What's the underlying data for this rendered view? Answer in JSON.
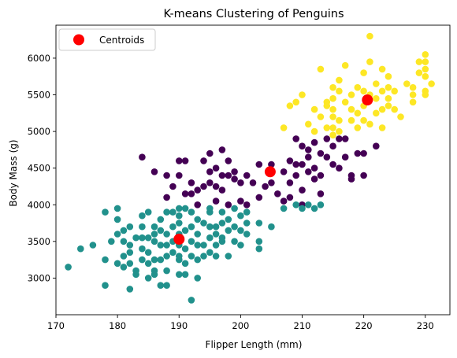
{
  "chart_data": {
    "type": "scatter",
    "title": "K-means Clustering of Penguins",
    "xlabel": "Flipper Length (mm)",
    "ylabel": "Body Mass (g)",
    "xlim": [
      170,
      234
    ],
    "ylim": [
      2500,
      6450
    ],
    "xticks": [
      170,
      180,
      190,
      200,
      210,
      220,
      230
    ],
    "yticks": [
      3000,
      3500,
      4000,
      4500,
      5000,
      5500,
      6000
    ],
    "grid": false,
    "legend": {
      "position": "top-left",
      "entries": [
        "Centroids"
      ]
    },
    "cluster_colors": [
      "#440154",
      "#21918c",
      "#fde725"
    ],
    "centroid_color": "#ff0000",
    "series": [
      {
        "cluster": 0,
        "points": [
          [
            184,
            4650
          ],
          [
            186,
            4450
          ],
          [
            188,
            4400
          ],
          [
            188,
            4100
          ],
          [
            189,
            4250
          ],
          [
            190,
            4600
          ],
          [
            190,
            4400
          ],
          [
            191,
            4600
          ],
          [
            191,
            4150
          ],
          [
            192,
            4150
          ],
          [
            192,
            4300
          ],
          [
            193,
            4200
          ],
          [
            193,
            4000
          ],
          [
            194,
            4250
          ],
          [
            194,
            4600
          ],
          [
            195,
            4450
          ],
          [
            195,
            4300
          ],
          [
            195,
            4700
          ],
          [
            196,
            4500
          ],
          [
            196,
            4250
          ],
          [
            196,
            4050
          ],
          [
            197,
            4400
          ],
          [
            197,
            4750
          ],
          [
            197,
            4200
          ],
          [
            198,
            4400
          ],
          [
            198,
            4600
          ],
          [
            198,
            4000
          ],
          [
            199,
            4450
          ],
          [
            199,
            4350
          ],
          [
            200,
            4300
          ],
          [
            200,
            4050
          ],
          [
            201,
            4400
          ],
          [
            201,
            4000
          ],
          [
            202,
            4300
          ],
          [
            203,
            4100
          ],
          [
            203,
            4550
          ],
          [
            204,
            4250
          ],
          [
            205,
            4550
          ],
          [
            205,
            4300
          ],
          [
            206,
            4150
          ],
          [
            207,
            4450
          ],
          [
            207,
            4050
          ],
          [
            208,
            4600
          ],
          [
            208,
            4300
          ],
          [
            208,
            4100
          ],
          [
            209,
            4550
          ],
          [
            209,
            4900
          ],
          [
            209,
            4400
          ],
          [
            210,
            4800
          ],
          [
            210,
            4550
          ],
          [
            210,
            4200
          ],
          [
            210,
            4000
          ],
          [
            211,
            4750
          ],
          [
            211,
            4450
          ],
          [
            211,
            4650
          ],
          [
            212,
            4850
          ],
          [
            212,
            4500
          ],
          [
            212,
            4350
          ],
          [
            213,
            4700
          ],
          [
            213,
            4400
          ],
          [
            213,
            4150
          ],
          [
            214,
            4900
          ],
          [
            214,
            4650
          ],
          [
            215,
            4800
          ],
          [
            215,
            4550
          ],
          [
            216,
            4900
          ],
          [
            216,
            4500
          ],
          [
            217,
            4900
          ],
          [
            217,
            4650
          ],
          [
            218,
            4400
          ],
          [
            218,
            4350
          ],
          [
            219,
            4700
          ],
          [
            220,
            4700
          ],
          [
            220,
            4400
          ],
          [
            222,
            4800
          ]
        ]
      },
      {
        "cluster": 1,
        "points": [
          [
            172,
            3150
          ],
          [
            174,
            3400
          ],
          [
            176,
            3450
          ],
          [
            178,
            3250
          ],
          [
            178,
            2900
          ],
          [
            178,
            3900
          ],
          [
            179,
            3500
          ],
          [
            180,
            3950
          ],
          [
            180,
            3600
          ],
          [
            180,
            3200
          ],
          [
            180,
            3800
          ],
          [
            181,
            3500
          ],
          [
            181,
            3650
          ],
          [
            181,
            3150
          ],
          [
            181,
            3300
          ],
          [
            182,
            3200
          ],
          [
            182,
            2850
          ],
          [
            182,
            3350
          ],
          [
            182,
            3700
          ],
          [
            182,
            3450
          ],
          [
            183,
            3100
          ],
          [
            183,
            3550
          ],
          [
            183,
            3050
          ],
          [
            184,
            3550
          ],
          [
            184,
            3400
          ],
          [
            184,
            3250
          ],
          [
            184,
            3850
          ],
          [
            184,
            3700
          ],
          [
            185,
            3900
          ],
          [
            185,
            3350
          ],
          [
            185,
            3000
          ],
          [
            185,
            3550
          ],
          [
            185,
            3200
          ],
          [
            186,
            3500
          ],
          [
            186,
            3100
          ],
          [
            186,
            3600
          ],
          [
            186,
            3700
          ],
          [
            186,
            3250
          ],
          [
            186,
            3050
          ],
          [
            187,
            3800
          ],
          [
            187,
            3450
          ],
          [
            187,
            3250
          ],
          [
            187,
            2900
          ],
          [
            187,
            3650
          ],
          [
            188,
            3450
          ],
          [
            188,
            3300
          ],
          [
            188,
            3100
          ],
          [
            188,
            3900
          ],
          [
            188,
            2900
          ],
          [
            188,
            3600
          ],
          [
            189,
            3700
          ],
          [
            189,
            3350
          ],
          [
            189,
            3500
          ],
          [
            189,
            3900
          ],
          [
            190,
            3950
          ],
          [
            190,
            3750
          ],
          [
            190,
            3600
          ],
          [
            190,
            3450
          ],
          [
            190,
            3300
          ],
          [
            190,
            3050
          ],
          [
            190,
            3850
          ],
          [
            190,
            3250
          ],
          [
            191,
            3650
          ],
          [
            191,
            3400
          ],
          [
            191,
            3200
          ],
          [
            191,
            3950
          ],
          [
            191,
            3050
          ],
          [
            192,
            3500
          ],
          [
            192,
            3300
          ],
          [
            192,
            3700
          ],
          [
            192,
            2700
          ],
          [
            192,
            3900
          ],
          [
            193,
            3600
          ],
          [
            193,
            3250
          ],
          [
            193,
            3800
          ],
          [
            193,
            3450
          ],
          [
            193,
            3000
          ],
          [
            194,
            3750
          ],
          [
            194,
            3450
          ],
          [
            194,
            3300
          ],
          [
            195,
            3550
          ],
          [
            195,
            3700
          ],
          [
            195,
            3900
          ],
          [
            195,
            3350
          ],
          [
            195,
            3950
          ],
          [
            196,
            3700
          ],
          [
            196,
            3450
          ],
          [
            196,
            3300
          ],
          [
            196,
            3600
          ],
          [
            197,
            3750
          ],
          [
            197,
            3500
          ],
          [
            197,
            3900
          ],
          [
            197,
            3550
          ],
          [
            198,
            3800
          ],
          [
            198,
            3300
          ],
          [
            198,
            3650
          ],
          [
            199,
            3950
          ],
          [
            199,
            3700
          ],
          [
            199,
            3500
          ],
          [
            200,
            3850
          ],
          [
            200,
            3450
          ],
          [
            200,
            3650
          ],
          [
            201,
            3900
          ],
          [
            201,
            3600
          ],
          [
            201,
            3750
          ],
          [
            203,
            3750
          ],
          [
            203,
            3500
          ],
          [
            203,
            3400
          ],
          [
            205,
            3700
          ],
          [
            207,
            3950
          ],
          [
            209,
            4000
          ],
          [
            210,
            3950
          ],
          [
            211,
            4000
          ],
          [
            212,
            3950
          ],
          [
            213,
            4000
          ]
        ]
      },
      {
        "cluster": 2,
        "points": [
          [
            207,
            5050
          ],
          [
            208,
            5350
          ],
          [
            209,
            5400
          ],
          [
            210,
            5500
          ],
          [
            211,
            5100
          ],
          [
            212,
            5000
          ],
          [
            212,
            5300
          ],
          [
            213,
            5200
          ],
          [
            213,
            5850
          ],
          [
            214,
            5400
          ],
          [
            214,
            5050
          ],
          [
            214,
            5350
          ],
          [
            215,
            5600
          ],
          [
            215,
            5300
          ],
          [
            215,
            5200
          ],
          [
            215,
            5050
          ],
          [
            215,
            4950
          ],
          [
            215,
            5450
          ],
          [
            216,
            5700
          ],
          [
            216,
            5550
          ],
          [
            216,
            5000
          ],
          [
            216,
            5150
          ],
          [
            217,
            5400
          ],
          [
            217,
            5900
          ],
          [
            218,
            5300
          ],
          [
            218,
            5150
          ],
          [
            218,
            5500
          ],
          [
            219,
            5600
          ],
          [
            219,
            5250
          ],
          [
            219,
            5050
          ],
          [
            220,
            5550
          ],
          [
            220,
            5350
          ],
          [
            220,
            5150
          ],
          [
            220,
            5800
          ],
          [
            221,
            6300
          ],
          [
            221,
            5500
          ],
          [
            221,
            5100
          ],
          [
            221,
            5950
          ],
          [
            222,
            5650
          ],
          [
            222,
            5450
          ],
          [
            222,
            5250
          ],
          [
            223,
            5550
          ],
          [
            223,
            5300
          ],
          [
            223,
            5050
          ],
          [
            223,
            5850
          ],
          [
            224,
            5450
          ],
          [
            224,
            5600
          ],
          [
            224,
            5750
          ],
          [
            224,
            5350
          ],
          [
            225,
            5300
          ],
          [
            225,
            5550
          ],
          [
            226,
            5200
          ],
          [
            227,
            5650
          ],
          [
            228,
            5400
          ],
          [
            228,
            5600
          ],
          [
            228,
            5500
          ],
          [
            229,
            5950
          ],
          [
            229,
            5800
          ],
          [
            230,
            5850
          ],
          [
            230,
            5550
          ],
          [
            230,
            5750
          ],
          [
            230,
            6050
          ],
          [
            230,
            5950
          ],
          [
            230,
            5500
          ],
          [
            231,
            5650
          ]
        ]
      }
    ],
    "centroids": [
      [
        204.8,
        4450
      ],
      [
        190.0,
        3530
      ],
      [
        220.6,
        5430
      ]
    ]
  }
}
